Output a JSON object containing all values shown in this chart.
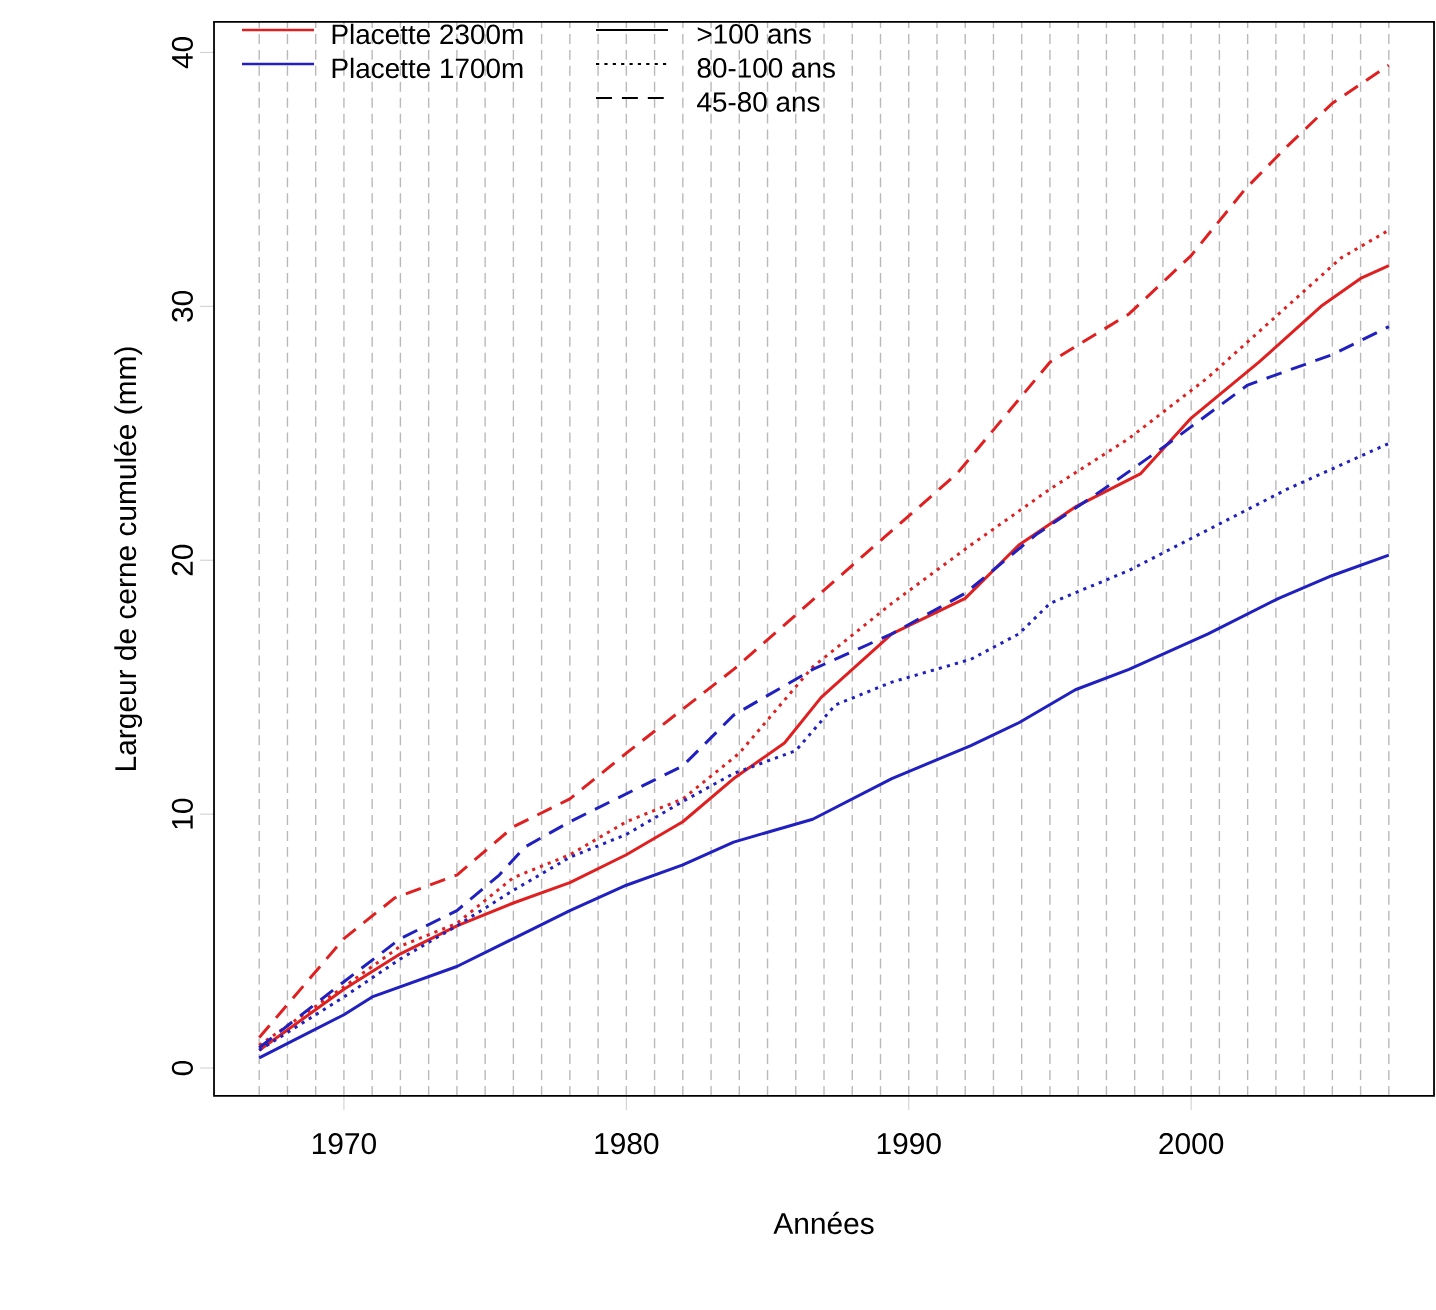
{
  "chart_data": {
    "type": "line",
    "xlabel": "Années",
    "ylabel": "Largeur de cerne cumulée (mm)",
    "xlim": [
      1965.4,
      2008.6
    ],
    "ylim": [
      -1.1,
      41.2
    ],
    "xticks": [
      {
        "value": 1967,
        "label": null
      },
      {
        "value": 1968,
        "label": null
      },
      {
        "value": 1969,
        "label": null
      },
      1970,
      {
        "value": 1971,
        "label": null
      },
      {
        "value": 1972,
        "label": null
      },
      {
        "value": 1973,
        "label": null
      },
      {
        "value": 1974,
        "label": null
      },
      {
        "value": 1975,
        "label": null
      },
      {
        "value": 1976,
        "label": null
      },
      {
        "value": 1977,
        "label": null
      },
      {
        "value": 1978,
        "label": null
      },
      {
        "value": 1979,
        "label": null
      },
      1980,
      {
        "value": 1981,
        "label": null
      },
      {
        "value": 1982,
        "label": null
      },
      {
        "value": 1983,
        "label": null
      },
      {
        "value": 1984,
        "label": null
      },
      {
        "value": 1985,
        "label": null
      },
      {
        "value": 1986,
        "label": null
      },
      {
        "value": 1987,
        "label": null
      },
      {
        "value": 1988,
        "label": null
      },
      {
        "value": 1989,
        "label": null
      },
      1990,
      {
        "value": 1991,
        "label": null
      },
      {
        "value": 1992,
        "label": null
      },
      {
        "value": 1993,
        "label": null
      },
      {
        "value": 1994,
        "label": null
      },
      {
        "value": 1995,
        "label": null
      },
      {
        "value": 1996,
        "label": null
      },
      {
        "value": 1997,
        "label": null
      },
      {
        "value": 1998,
        "label": null
      },
      {
        "value": 1999,
        "label": null
      },
      2000,
      {
        "value": 2001,
        "label": null
      },
      {
        "value": 2002,
        "label": null
      },
      {
        "value": 2003,
        "label": null
      },
      {
        "value": 2004,
        "label": null
      },
      {
        "value": 2005,
        "label": null
      },
      {
        "value": 2006,
        "label": null
      },
      {
        "value": 2007,
        "label": null
      }
    ],
    "yticks": [
      0,
      10,
      20,
      30,
      40
    ],
    "grid": "x",
    "annotations": [
      "Placette 2300m",
      "Placette 1700m",
      ">100 ans",
      "80-100 ans",
      "45-80 ans"
    ],
    "series": [
      {
        "color": "#e02020",
        "line_style": "solid",
        "x": [
          1967,
          1970,
          1972,
          1974,
          1976,
          1978,
          1980,
          1982,
          1983.8,
          1985.6,
          1986.9,
          1989.4,
          1992,
          1993.9,
          1995.9,
          1998.2,
          2000,
          2002.4,
          2004.6,
          2006,
          2007
        ],
        "values": [
          0.7,
          3.1,
          4.5,
          5.6,
          6.5,
          7.3,
          8.4,
          9.7,
          11.4,
          12.8,
          14.6,
          17.1,
          18.5,
          20.6,
          22.1,
          23.4,
          25.6,
          27.8,
          30,
          31.1,
          31.6
        ]
      },
      {
        "color": "#e02020",
        "line_style": "dotted",
        "x": [
          1967,
          1970,
          1972,
          1974,
          1976,
          1978,
          1980,
          1982,
          1984,
          1986.6,
          1989.4,
          1992.2,
          1995,
          1997.8,
          2000.6,
          2003.4,
          2005.3,
          2007
        ],
        "values": [
          0.9,
          3.2,
          4.8,
          5.7,
          7.5,
          8.4,
          9.7,
          10.6,
          12.4,
          15.8,
          18.3,
          20.6,
          22.8,
          24.8,
          27.2,
          30,
          31.9,
          33
        ]
      },
      {
        "color": "#e02020",
        "line_style": "dashed",
        "x": [
          1967,
          1970,
          1971.8,
          1974,
          1976,
          1978,
          1980,
          1983.8,
          1988,
          1991.7,
          1995,
          1997.8,
          2000,
          2001.9,
          2003.4,
          2005,
          2007
        ],
        "values": [
          1.2,
          5.1,
          6.7,
          7.6,
          9.5,
          10.6,
          12.4,
          15.7,
          19.8,
          23.4,
          27.8,
          29.7,
          32,
          34.6,
          36.3,
          38,
          39.5
        ]
      },
      {
        "color": "#2020c0",
        "line_style": "solid",
        "x": [
          1967,
          1970,
          1971,
          1974,
          1976,
          1978,
          1980,
          1982,
          1983.8,
          1986.6,
          1989.4,
          1992.2,
          1993.9,
          1995.9,
          1997.8,
          2000.6,
          2003.1,
          2005,
          2007
        ],
        "values": [
          0.4,
          2.1,
          2.8,
          4,
          5.1,
          6.2,
          7.2,
          8,
          8.9,
          9.8,
          11.4,
          12.7,
          13.6,
          14.9,
          15.7,
          17.1,
          18.5,
          19.4,
          20.2
        ]
      },
      {
        "color": "#2020c0",
        "line_style": "dotted",
        "x": [
          1967,
          1970,
          1972,
          1974,
          1976,
          1978,
          1980,
          1982,
          1983.8,
          1986,
          1987.4,
          1989.4,
          1992.2,
          1993.9,
          1995,
          1997.8,
          2000.6,
          2003.4,
          2007
        ],
        "values": [
          0.7,
          2.8,
          4.3,
          5.6,
          7,
          8.3,
          9.2,
          10.5,
          11.6,
          12.5,
          14.3,
          15.2,
          16.1,
          17.1,
          18.3,
          19.6,
          21.2,
          22.8,
          24.6
        ]
      },
      {
        "color": "#2020c0",
        "line_style": "dashed",
        "x": [
          1967,
          1970,
          1972,
          1974,
          1975.5,
          1976.4,
          1978,
          1980,
          1982,
          1983.8,
          1986.6,
          1989.4,
          1992,
          1994.5,
          1997.3,
          1999.2,
          2002,
          2005,
          2007
        ],
        "values": [
          0.8,
          3.4,
          5.1,
          6.2,
          7.6,
          8.7,
          9.7,
          10.8,
          11.9,
          13.9,
          15.7,
          17.1,
          18.7,
          21,
          23.1,
          24.6,
          26.9,
          28.1,
          29.2
        ]
      }
    ]
  }
}
